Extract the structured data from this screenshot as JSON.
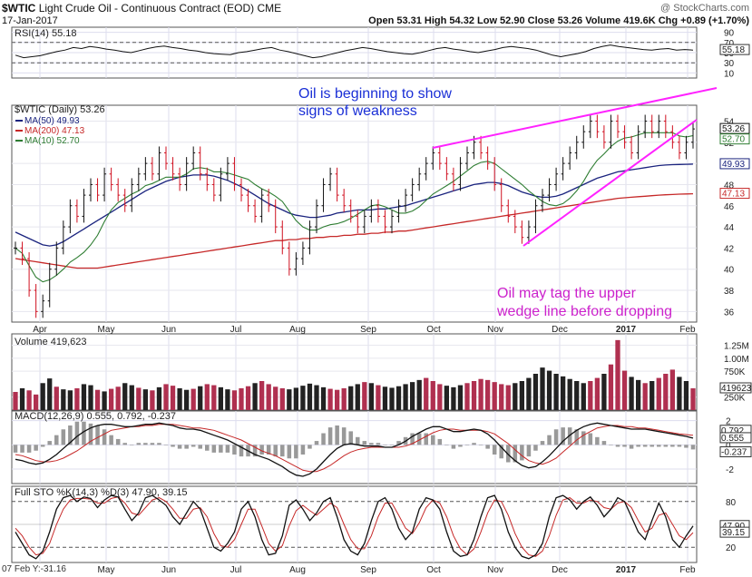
{
  "header": {
    "symbol": "$WTIC",
    "name": "Light Crude Oil - Continuous Contract (EOD)",
    "exchange": "CME",
    "date": "17-Jan-2017",
    "watermark": "@ StockCharts.com",
    "stats": "Open 53.31  High 54.32  Low 52.90  Close 53.26  Volume 419.6K  Chg +0.89 (+1.70%)",
    "footer_left": "07 Feb Y:-31.16"
  },
  "annotations": [
    "Oil is beginning to show",
    "signs of weakness",
    "Oil may tag the upper",
    "wedge line before dropping"
  ],
  "colors": {
    "annotation_blue": "#1a2fd6",
    "annotation_magenta": "#cc22cc",
    "wedge": "#ff22ff",
    "ma50": "#1a237e",
    "ma200": "#c62828",
    "ma10": "#2e7d32",
    "volume_up": "#222222",
    "volume_down": "#b03050"
  },
  "chart_data": [
    {
      "type": "line",
      "panel": "RSI",
      "label": "RSI(14) 55.18",
      "yticks": [
        90,
        70,
        50,
        30,
        10
      ],
      "ylim": [
        0,
        100
      ],
      "last_value": 55.18,
      "levels": [
        70,
        30
      ],
      "values": [
        45,
        40,
        42,
        44,
        48,
        52,
        55,
        60,
        58,
        62,
        60,
        57,
        55,
        52,
        50,
        54,
        58,
        61,
        63,
        60,
        58,
        55,
        53,
        50,
        48,
        47,
        46,
        50,
        52,
        55,
        58,
        60,
        55,
        52,
        48,
        44,
        40,
        42,
        46,
        50,
        54,
        57,
        60,
        58,
        55,
        52,
        50,
        48,
        47,
        50,
        54,
        58,
        60,
        57,
        55,
        52,
        50,
        53,
        56,
        60,
        62,
        60,
        58,
        55,
        50,
        45,
        42,
        45,
        48,
        52,
        58,
        62,
        65,
        62,
        60,
        58,
        56,
        55,
        57,
        58,
        55,
        56,
        55
      ]
    },
    {
      "type": "candlestick",
      "panel": "Price",
      "label": "$WTIC (Daily) 53.26",
      "legend": [
        "MA(50) 49.93",
        "MA(200) 47.13",
        "MA(10) 52.70"
      ],
      "x_ticks": [
        "Apr",
        "May",
        "Jun",
        "Jul",
        "Aug",
        "Sep",
        "Oct",
        "Nov",
        "Dec",
        "2017",
        "Feb"
      ],
      "yticks": [
        54,
        52,
        50,
        48,
        46,
        44,
        42,
        40,
        38,
        36
      ],
      "ylim": [
        35,
        55.5
      ],
      "last_labels": [
        "53.26",
        "52.70",
        "49.93",
        "47.13"
      ],
      "close": [
        42,
        41,
        38,
        36,
        37,
        40,
        42,
        44,
        46,
        45,
        47,
        48,
        47,
        49,
        48,
        47,
        46,
        48,
        49,
        50,
        49,
        51,
        50,
        49,
        48,
        50,
        51,
        49,
        48,
        47,
        49,
        50,
        48,
        47,
        46,
        45,
        47,
        46,
        44,
        42,
        40,
        41,
        42,
        44,
        46,
        48,
        49,
        47,
        46,
        45,
        44,
        45,
        46,
        45,
        44,
        45,
        46,
        47,
        48,
        49,
        50,
        51,
        50,
        49,
        48,
        50,
        51,
        52,
        51,
        50,
        48,
        46,
        45,
        44,
        43,
        44,
        46,
        47,
        48,
        49,
        50,
        51,
        52,
        53,
        54,
        53,
        52,
        54,
        53,
        52,
        51,
        53,
        54,
        53,
        54,
        53,
        52,
        51,
        52,
        53.26
      ],
      "ma50": [
        43.5,
        43.2,
        42.9,
        42.6,
        42.3,
        42.2,
        42.3,
        42.6,
        43.0,
        43.4,
        43.8,
        44.2,
        44.6,
        45.0,
        45.4,
        45.8,
        46.2,
        46.6,
        47.0,
        47.4,
        47.7,
        48.0,
        48.3,
        48.5,
        48.7,
        48.8,
        48.9,
        48.9,
        48.9,
        48.8,
        48.6,
        48.4,
        48.1,
        47.8,
        47.4,
        47.0,
        46.6,
        46.2,
        45.9,
        45.6,
        45.3,
        45.1,
        45.0,
        44.9,
        44.9,
        45.0,
        45.1,
        45.3,
        45.4,
        45.5,
        45.6,
        45.6,
        45.6,
        45.7,
        45.7,
        45.8,
        45.9,
        46.0,
        46.2,
        46.4,
        46.6,
        46.8,
        47.0,
        47.2,
        47.4,
        47.6,
        47.8,
        48.0,
        48.1,
        48.2,
        48.2,
        48.1,
        47.9,
        47.6,
        47.3,
        47.1,
        46.9,
        46.8,
        46.8,
        46.9,
        47.1,
        47.4,
        47.7,
        48.0,
        48.3,
        48.6,
        48.8,
        49.0,
        49.2,
        49.3,
        49.4,
        49.5,
        49.6,
        49.7,
        49.8,
        49.85,
        49.88,
        49.9,
        49.92,
        49.93
      ],
      "ma200": [
        41.0,
        40.9,
        40.8,
        40.7,
        40.6,
        40.5,
        40.4,
        40.3,
        40.2,
        40.1,
        40.1,
        40.1,
        40.1,
        40.2,
        40.3,
        40.4,
        40.5,
        40.6,
        40.7,
        40.8,
        40.9,
        41.0,
        41.1,
        41.2,
        41.3,
        41.4,
        41.5,
        41.6,
        41.7,
        41.8,
        41.9,
        42.0,
        42.1,
        42.2,
        42.3,
        42.4,
        42.5,
        42.6,
        42.7,
        42.7,
        42.8,
        42.8,
        42.9,
        42.9,
        43.0,
        43.0,
        43.1,
        43.1,
        43.2,
        43.2,
        43.3,
        43.3,
        43.4,
        43.4,
        43.5,
        43.5,
        43.6,
        43.6,
        43.7,
        43.8,
        43.9,
        44.0,
        44.1,
        44.2,
        44.3,
        44.4,
        44.5,
        44.6,
        44.7,
        44.8,
        44.9,
        45.0,
        45.1,
        45.2,
        45.3,
        45.4,
        45.5,
        45.6,
        45.7,
        45.8,
        45.9,
        46.0,
        46.1,
        46.2,
        46.3,
        46.4,
        46.5,
        46.6,
        46.7,
        46.75,
        46.8,
        46.85,
        46.9,
        46.95,
        47.0,
        47.03,
        47.06,
        47.09,
        47.11,
        47.13
      ],
      "wedge_upper": [
        [
          477,
          163
        ],
        [
          790,
          97
        ]
      ],
      "wedge_lower": [
        [
          577,
          271
        ],
        [
          768,
          132
        ]
      ]
    },
    {
      "type": "bar",
      "panel": "Volume",
      "label": "Volume 419,623",
      "yticks": [
        "1.25M",
        "1.00M",
        "750K",
        "250K"
      ],
      "last_label": "419623",
      "values": [
        350,
        420,
        380,
        300,
        520,
        610,
        450,
        400,
        380,
        420,
        500,
        480,
        390,
        360,
        410,
        450,
        520,
        480,
        430,
        400,
        380,
        440,
        500,
        470,
        420,
        390,
        410,
        460,
        500,
        480,
        440,
        400,
        380,
        420,
        460,
        520,
        560,
        500,
        450,
        420,
        400,
        430,
        470,
        510,
        480,
        440,
        410,
        390,
        420,
        460,
        500,
        540,
        520,
        480,
        450,
        430,
        460,
        500,
        540,
        580,
        620,
        560,
        500,
        470,
        440,
        480,
        520,
        560,
        600,
        580,
        540,
        500,
        480,
        520,
        560,
        620,
        700,
        820,
        760,
        700,
        650,
        600,
        560,
        520,
        560,
        620,
        700,
        880,
        1350,
        760,
        640,
        580,
        520,
        560,
        620,
        700,
        780,
        640,
        560,
        419.623
      ],
      "up": [
        0,
        1,
        0,
        0,
        1,
        1,
        0,
        1,
        1,
        0,
        1,
        1,
        0,
        1,
        0,
        0,
        1,
        1,
        0,
        1,
        0,
        1,
        0,
        0,
        1,
        1,
        0,
        1,
        0,
        0,
        1,
        1,
        0,
        0,
        0,
        1,
        0,
        0,
        0,
        0,
        1,
        1,
        1,
        1,
        1,
        1,
        0,
        0,
        0,
        1,
        1,
        0,
        1,
        0,
        1,
        1,
        1,
        1,
        1,
        1,
        0,
        0,
        0,
        1,
        1,
        1,
        0,
        0,
        0,
        0,
        0,
        0,
        0,
        1,
        1,
        1,
        1,
        1,
        1,
        1,
        1,
        1,
        1,
        1,
        0,
        0,
        1,
        0,
        0,
        0,
        1,
        1,
        0,
        1,
        0,
        0,
        0,
        1,
        1,
        0
      ]
    },
    {
      "type": "line",
      "panel": "MACD",
      "label": "MACD(12,26,9) 0.555, 0.792, -0.237",
      "yticks": [
        2,
        0,
        -2
      ],
      "last_labels": [
        "0.792",
        "0.555",
        "-0.237"
      ],
      "ylim": [
        -3.2,
        2.8
      ],
      "macd": [
        -1.2,
        -1.3,
        -1.5,
        -1.6,
        -1.5,
        -1.2,
        -0.8,
        -0.3,
        0.2,
        0.7,
        1.1,
        1.4,
        1.6,
        1.7,
        1.7,
        1.6,
        1.5,
        1.5,
        1.6,
        1.7,
        1.7,
        1.8,
        1.7,
        1.6,
        1.4,
        1.3,
        1.3,
        1.2,
        1.0,
        0.8,
        0.6,
        0.4,
        0.1,
        -0.2,
        -0.5,
        -0.8,
        -1.0,
        -1.2,
        -1.5,
        -1.8,
        -2.2,
        -2.5,
        -2.6,
        -2.4,
        -2.0,
        -1.4,
        -0.8,
        -0.3,
        0.0,
        0.1,
        0.0,
        -0.1,
        -0.1,
        -0.1,
        -0.2,
        -0.2,
        0.0,
        0.3,
        0.7,
        1.0,
        1.3,
        1.5,
        1.5,
        1.3,
        1.1,
        1.1,
        1.2,
        1.3,
        1.2,
        0.9,
        0.4,
        -0.2,
        -0.8,
        -1.3,
        -1.7,
        -1.9,
        -1.8,
        -1.4,
        -0.9,
        -0.3,
        0.3,
        0.8,
        1.2,
        1.5,
        1.7,
        1.8,
        1.7,
        1.6,
        1.5,
        1.4,
        1.3,
        1.3,
        1.3,
        1.2,
        1.1,
        1.0,
        0.9,
        0.8,
        0.7,
        0.555
      ],
      "signal": [
        -0.8,
        -0.9,
        -1.1,
        -1.3,
        -1.4,
        -1.4,
        -1.3,
        -1.1,
        -0.8,
        -0.5,
        -0.1,
        0.3,
        0.6,
        0.9,
        1.2,
        1.3,
        1.4,
        1.5,
        1.5,
        1.6,
        1.6,
        1.7,
        1.7,
        1.7,
        1.6,
        1.5,
        1.4,
        1.4,
        1.3,
        1.2,
        1.0,
        0.8,
        0.6,
        0.4,
        0.1,
        -0.2,
        -0.5,
        -0.7,
        -0.9,
        -1.2,
        -1.5,
        -1.8,
        -2.1,
        -2.2,
        -2.2,
        -2.0,
        -1.7,
        -1.3,
        -0.9,
        -0.6,
        -0.4,
        -0.3,
        -0.2,
        -0.2,
        -0.2,
        -0.2,
        -0.2,
        -0.1,
        0.1,
        0.4,
        0.7,
        1.0,
        1.2,
        1.3,
        1.3,
        1.2,
        1.2,
        1.2,
        1.2,
        1.1,
        0.9,
        0.5,
        0.1,
        -0.4,
        -0.9,
        -1.3,
        -1.5,
        -1.6,
        -1.4,
        -1.1,
        -0.6,
        -0.1,
        0.4,
        0.8,
        1.1,
        1.4,
        1.5,
        1.6,
        1.6,
        1.5,
        1.5,
        1.4,
        1.4,
        1.3,
        1.2,
        1.1,
        1.0,
        0.9,
        0.85,
        0.792
      ]
    },
    {
      "type": "line",
      "panel": "STO",
      "label": "Full STO %K(14,3) %D(3) 47.90, 39.15",
      "yticks": [
        80,
        50,
        20
      ],
      "last_labels": [
        "47.90",
        "39.15"
      ],
      "ylim": [
        0,
        100
      ],
      "k": [
        40,
        25,
        10,
        5,
        15,
        40,
        70,
        85,
        88,
        80,
        86,
        84,
        72,
        82,
        88,
        86,
        70,
        55,
        65,
        85,
        88,
        82,
        75,
        60,
        50,
        65,
        80,
        70,
        45,
        20,
        15,
        25,
        40,
        70,
        80,
        60,
        30,
        10,
        12,
        35,
        75,
        82,
        70,
        55,
        65,
        80,
        85,
        60,
        30,
        15,
        10,
        25,
        55,
        80,
        85,
        70,
        45,
        30,
        40,
        70,
        85,
        82,
        70,
        40,
        15,
        8,
        10,
        30,
        60,
        85,
        88,
        70,
        40,
        20,
        8,
        5,
        10,
        25,
        60,
        85,
        88,
        82,
        70,
        80,
        86,
        75,
        60,
        70,
        85,
        80,
        60,
        40,
        30,
        55,
        78,
        60,
        30,
        20,
        35,
        47.9
      ],
      "d": [
        45,
        35,
        20,
        10,
        12,
        25,
        50,
        70,
        82,
        84,
        84,
        83,
        78,
        78,
        84,
        86,
        78,
        65,
        62,
        72,
        82,
        85,
        80,
        70,
        58,
        58,
        70,
        72,
        60,
        38,
        22,
        20,
        30,
        50,
        70,
        70,
        48,
        25,
        15,
        22,
        48,
        68,
        75,
        68,
        62,
        70,
        78,
        72,
        50,
        30,
        18,
        18,
        35,
        60,
        78,
        78,
        62,
        45,
        38,
        52,
        72,
        82,
        78,
        60,
        35,
        18,
        10,
        18,
        40,
        65,
        82,
        80,
        62,
        38,
        20,
        10,
        8,
        15,
        35,
        62,
        82,
        85,
        78,
        78,
        82,
        80,
        72,
        70,
        78,
        80,
        72,
        55,
        40,
        45,
        62,
        65,
        50,
        35,
        30,
        39.15
      ]
    }
  ]
}
